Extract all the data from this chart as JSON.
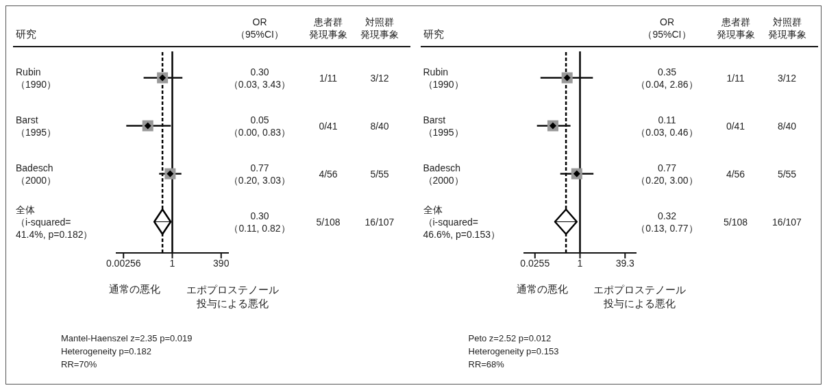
{
  "chart_data": [
    {
      "type": "scatter",
      "orientation": "horizontal",
      "log": "x",
      "ylabel": "研究",
      "categories": [
        "Rubin\n（1990）",
        "Barst\n（1995）",
        "Badesch\n（2000）",
        "全体（i-squared=\n41.4%, p=0.182）"
      ],
      "xlim": [
        0.001,
        1000
      ],
      "xticks": [
        0.00256,
        1,
        390
      ],
      "series": [
        {
          "type": "scatter",
          "marker": "square",
          "color": "#999999",
          "values": [
            0.3,
            0.05,
            0.77,
            null
          ],
          "errors": [
            [
              0.03,
              3.43
            ],
            [
              0.0036,
              0.83
            ],
            [
              0.2,
              3.03
            ],
            null
          ],
          "value_labels": [
            "0.30\n（0.03, 3.43）",
            "0.05\n（0.00, 0.83）",
            "0.77\n（0.20, 3.03）",
            null
          ]
        },
        {
          "type": "scatter",
          "marker": "diamond",
          "color": "#000000",
          "values": [
            null,
            null,
            null,
            0.3
          ],
          "errors": [
            null,
            null,
            null,
            [
              0.11,
              0.82
            ]
          ]
        }
      ],
      "ref_lines": [
        {
          "axis": "x",
          "value": 0.3,
          "line_style": "dashed",
          "color": "#000000"
        },
        {
          "axis": "x",
          "value": 1,
          "line_style": "solid",
          "color": "#000000"
        }
      ],
      "annotations": [
        "OR\n（95%CI）",
        "患者群",
        "発現事象",
        "対照群",
        "発現事象",
        "1/11",
        "3/12",
        "0/41",
        "8/40",
        "4/56",
        "5/55",
        "5/108",
        "16/107",
        "通常の悪化",
        "エポプロステノール投与による悪化",
        "Mantel-Haenszel z=2.35 p=0.019",
        "Heterogeneity p=0.182",
        "RR=70%",
        "0.30\n（0.11, 0.82）"
      ]
    },
    {
      "type": "scatter",
      "orientation": "horizontal",
      "log": "x",
      "ylabel": "研究",
      "categories": [
        "Rubin\n（1990）",
        "Barst\n（1995）",
        "Badesch\n（2000）",
        "全体（i-squared=\n46.6%, p=0.153）"
      ],
      "xlim": [
        0.01,
        100
      ],
      "xticks": [
        0.0255,
        1,
        39.3
      ],
      "series": [
        {
          "type": "scatter",
          "marker": "square",
          "color": "#999999",
          "values": [
            0.35,
            0.11,
            0.77,
            null
          ],
          "errors": [
            [
              0.04,
              2.86
            ],
            [
              0.03,
              0.46
            ],
            [
              0.2,
              3.0
            ],
            null
          ],
          "value_labels": [
            "0.35\n（0.04, 2.86）",
            "0.11\n（0.03, 0.46）",
            "0.77\n（0.20, 3.00）",
            null
          ]
        },
        {
          "type": "scatter",
          "marker": "diamond",
          "color": "#000000",
          "values": [
            null,
            null,
            null,
            0.32
          ],
          "errors": [
            null,
            null,
            null,
            [
              0.13,
              0.77
            ]
          ]
        }
      ],
      "ref_lines": [
        {
          "axis": "x",
          "value": 0.32,
          "line_style": "dashed",
          "color": "#000000"
        },
        {
          "axis": "x",
          "value": 1,
          "line_style": "solid",
          "color": "#000000"
        }
      ],
      "annotations": [
        "OR\n（95%CI）",
        "患者群",
        "発現事象",
        "対照群",
        "発現事象",
        "1/11",
        "3/12",
        "0/41",
        "8/40",
        "4/56",
        "5/55",
        "5/108",
        "16/107",
        "通常の悪化",
        "エポプロステノール投与による悪化",
        "Peto z=2.52 p=0.012",
        "Heterogeneity p=0.153",
        "RR=68%",
        "0.32\n（0.13, 0.77）"
      ]
    }
  ]
}
